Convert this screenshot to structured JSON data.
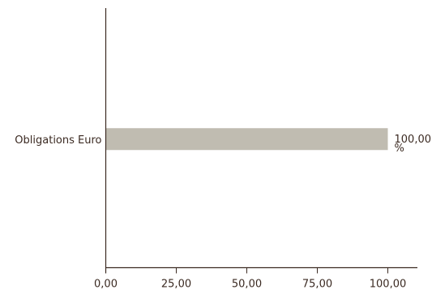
{
  "chart_data": {
    "type": "bar",
    "orientation": "horizontal",
    "categories": [
      "Obligations Euro"
    ],
    "values": [
      100.0
    ],
    "value_labels": [
      [
        "100,00",
        "%"
      ]
    ],
    "x_ticks": [
      "0,00",
      "25,00",
      "50,00",
      "75,00",
      "100,00"
    ],
    "x_tick_values": [
      0,
      25,
      50,
      75,
      100
    ],
    "xlim": [
      0,
      110
    ],
    "title": "",
    "xlabel": "",
    "ylabel": "",
    "grid": false,
    "legend": "none"
  },
  "colors": {
    "bar": "#c0bcb1",
    "axis": "#3b2a22",
    "text": "#3b2a22"
  }
}
